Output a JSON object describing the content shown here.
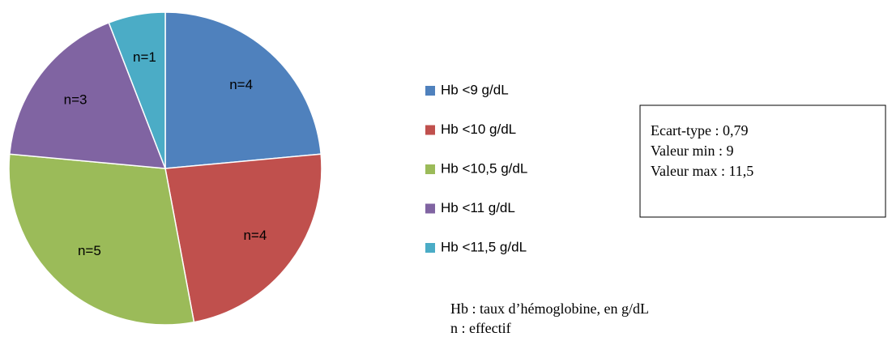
{
  "chart_data": {
    "type": "pie",
    "categories": [
      "Hb <9 g/dL",
      "Hb <10 g/dL",
      "Hb <10,5 g/dL",
      "Hb <11 g/dL",
      "Hb <11,5 g/dL"
    ],
    "values": [
      4,
      4,
      5,
      3,
      1
    ],
    "value_labels": [
      "n=4",
      "n=4",
      "n=5",
      "n=3",
      "n=1"
    ],
    "colors": [
      "#4f81bd",
      "#c0504d",
      "#9bbb59",
      "#8064a2",
      "#4bacc6"
    ],
    "legend": "right",
    "stats_box": [
      "Ecart-type : 0,79",
      "Valeur min : 9",
      "Valeur max : 11,5"
    ],
    "notes": [
      "Hb : taux d’hémoglobine, en g/dL",
      "n : effectif"
    ]
  }
}
